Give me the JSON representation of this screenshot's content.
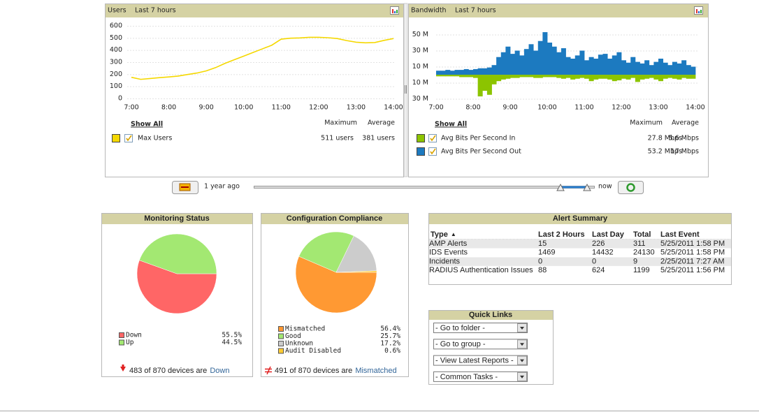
{
  "chart_data": [
    {
      "type": "line",
      "title": "Users",
      "subtitle": "Last 7 hours",
      "x": [
        7,
        7.25,
        7.5,
        7.75,
        8,
        8.25,
        8.5,
        8.75,
        9,
        9.25,
        9.5,
        9.75,
        10,
        10.25,
        10.5,
        10.75,
        11,
        11.25,
        11.5,
        11.75,
        12,
        12.25,
        12.5,
        12.75,
        13,
        13.25,
        13.5,
        13.75,
        14
      ],
      "xlim": [
        7,
        14
      ],
      "xticks": [
        {
          "value": 7,
          "label": "7:00"
        },
        {
          "value": 8,
          "label": "8:00"
        },
        {
          "value": 9,
          "label": "9:00"
        },
        {
          "value": 10,
          "label": "10:00"
        },
        {
          "value": 11,
          "label": "11:00"
        },
        {
          "value": 12,
          "label": "12:00"
        },
        {
          "value": 13,
          "label": "13:00"
        },
        {
          "value": 14,
          "label": "14:00"
        }
      ],
      "ylim": [
        0,
        600
      ],
      "yticks": [
        0,
        100,
        200,
        300,
        400,
        500,
        600
      ],
      "grid": true,
      "show_all": "Show All",
      "stat_headers": [
        "Maximum",
        "Average"
      ],
      "series": [
        {
          "name": "Max Users",
          "color": "#f5d800",
          "maximum": "511 users",
          "average": "381 users",
          "values": [
            175,
            158,
            165,
            172,
            178,
            185,
            198,
            210,
            228,
            255,
            290,
            320,
            350,
            380,
            410,
            440,
            490,
            498,
            500,
            505,
            505,
            502,
            495,
            478,
            465,
            460,
            462,
            480,
            495
          ]
        }
      ]
    },
    {
      "type": "bar",
      "title": "Bandwidth",
      "subtitle": "Last 7 hours",
      "xlim": [
        7,
        14
      ],
      "xticks": [
        {
          "value": 7,
          "label": "7:00"
        },
        {
          "value": 8,
          "label": "8:00"
        },
        {
          "value": 9,
          "label": "9:00"
        },
        {
          "value": 10,
          "label": "10:00"
        },
        {
          "value": 11,
          "label": "11:00"
        },
        {
          "value": 12,
          "label": "12:00"
        },
        {
          "value": 13,
          "label": "13:00"
        },
        {
          "value": 14,
          "label": "14:00"
        }
      ],
      "ylim_out": [
        0,
        70
      ],
      "yticks_out": [
        {
          "value": 50,
          "label": "50 M"
        },
        {
          "value": 30,
          "label": "30 M"
        },
        {
          "value": 10,
          "label": "10 M"
        }
      ],
      "ylim_in": [
        0,
        35
      ],
      "yticks_in": [
        {
          "value": 10,
          "label": "10 M"
        },
        {
          "value": 30,
          "label": "30 M"
        }
      ],
      "grid": true,
      "show_all": "Show All",
      "stat_headers": [
        "Maximum",
        "Average"
      ],
      "series": [
        {
          "name": "Avg Bits Per Second In",
          "color": "#8cc400",
          "direction": "down",
          "maximum": "27.8 Mbps",
          "average": "5.6 Mbps",
          "values": [
            2,
            2,
            2,
            2,
            2,
            3,
            3,
            3,
            4,
            27,
            20,
            25,
            12,
            8,
            6,
            5,
            4,
            4,
            3,
            3,
            3,
            4,
            4,
            3,
            3,
            3,
            4,
            5,
            4,
            6,
            5,
            4,
            5,
            8,
            6,
            5,
            5,
            6,
            8,
            7,
            5,
            6,
            4,
            9,
            6,
            5,
            4,
            6,
            8,
            5,
            4,
            5,
            6,
            4,
            5,
            5
          ]
        },
        {
          "name": "Avg Bits Per Second Out",
          "color": "#1c7ac0",
          "direction": "up",
          "maximum": "53.2 Mbps",
          "average": "17 Mbps",
          "values": [
            5,
            5,
            6,
            5,
            6,
            6,
            7,
            6,
            7,
            8,
            8,
            9,
            12,
            22,
            28,
            35,
            26,
            30,
            24,
            32,
            38,
            30,
            42,
            53,
            40,
            35,
            28,
            33,
            22,
            20,
            24,
            30,
            18,
            22,
            20,
            25,
            26,
            20,
            24,
            28,
            18,
            15,
            22,
            16,
            14,
            18,
            12,
            16,
            20,
            15,
            12,
            16,
            14,
            18,
            12,
            10
          ]
        }
      ]
    },
    {
      "type": "pie",
      "title": "Monitoring Status",
      "categories": [
        "Down",
        "Up"
      ],
      "values": [
        55.5,
        44.5
      ],
      "value_labels": [
        "55.5%",
        "44.5%"
      ],
      "colors": [
        "#ff6666",
        "#a3e872"
      ],
      "footer": {
        "text": "483 of 870 devices are",
        "link": "Down"
      }
    },
    {
      "type": "pie",
      "title": "Configuration Compliance",
      "categories": [
        "Mismatched",
        "Good",
        "Unknown",
        "Audit Disabled"
      ],
      "values": [
        56.4,
        25.7,
        17.2,
        0.6
      ],
      "value_labels": [
        "56.4%",
        "25.7%",
        "17.2%",
        "0.6%"
      ],
      "colors": [
        "#ff9933",
        "#a3e872",
        "#cccccc",
        "#ffcc33"
      ],
      "footer": {
        "text": "491 of 870 devices are",
        "link": "Mismatched"
      }
    }
  ],
  "slider": {
    "start_label": "1 year ago",
    "end_label": "now"
  },
  "alert_summary": {
    "title": "Alert Summary",
    "columns": [
      "Type",
      "Last 2 Hours",
      "Last Day",
      "Total",
      "Last Event"
    ],
    "sort_indicator": "▲",
    "rows": [
      [
        "AMP Alerts",
        15,
        226,
        311,
        "5/25/2011 1:58 PM"
      ],
      [
        "IDS Events",
        1469,
        14432,
        24130,
        "5/25/2011 1:58 PM"
      ],
      [
        "Incidents",
        0,
        0,
        9,
        "2/25/2011 7:27 AM"
      ],
      [
        "RADIUS Authentication Issues",
        88,
        624,
        1199,
        "5/25/2011 1:56 PM"
      ]
    ]
  },
  "quick_links": {
    "title": "Quick Links",
    "selects": [
      "- Go to folder -",
      "- Go to group -",
      "- View Latest Reports -",
      "- Common Tasks -"
    ]
  }
}
